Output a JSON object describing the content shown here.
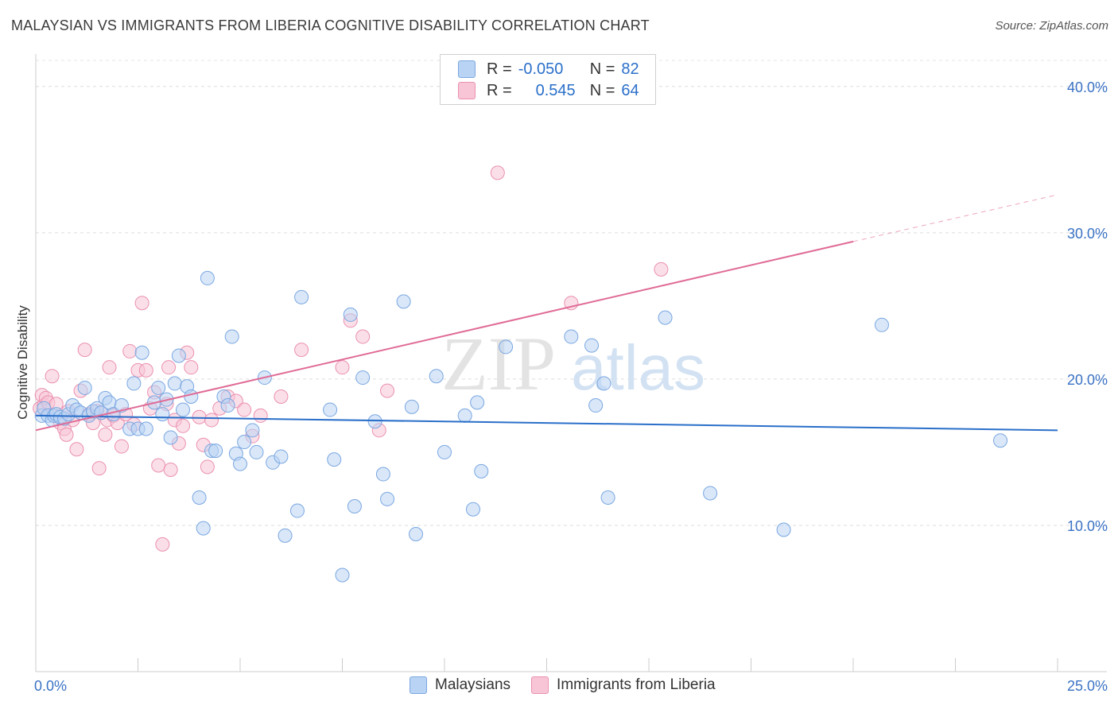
{
  "title": "MALAYSIAN VS IMMIGRANTS FROM LIBERIA COGNITIVE DISABILITY CORRELATION CHART",
  "source": "Source: ZipAtlas.com",
  "watermark": {
    "zip": "ZIP",
    "atlas": "atlas"
  },
  "legend": {
    "r_label": "R =",
    "n_label": "N =",
    "series1": {
      "r": "-0.050",
      "n": "82"
    },
    "series2": {
      "r": "0.545",
      "n": "64"
    }
  },
  "colors": {
    "blue_fill": "#b9d3f4",
    "blue_stroke": "#7aa7e0",
    "blue_line": "#2a6fc9",
    "pink_fill": "#f8c5d6",
    "pink_stroke": "#ea90b0",
    "pink_line": "#e06b96",
    "axis_text": "#3a72c4"
  },
  "chart_data": {
    "type": "scatter",
    "title": "MALAYSIAN VS IMMIGRANTS FROM LIBERIA COGNITIVE DISABILITY CORRELATION CHART",
    "ylabel": "Cognitive Disability",
    "xlabel": "",
    "xlim": [
      0,
      25
    ],
    "ylim": [
      0,
      42
    ],
    "x_tick_labels": [
      "0.0%",
      "25.0%"
    ],
    "y_ticks": [
      10,
      20,
      30,
      40
    ],
    "y_tick_labels": [
      "10.0%",
      "20.0%",
      "30.0%",
      "40.0%"
    ],
    "grid": true,
    "series": [
      {
        "name": "Malaysians",
        "color": "#b9d3f4",
        "trend": {
          "x": [
            0,
            25
          ],
          "y": [
            17.5,
            16.5
          ]
        },
        "points": [
          [
            0.15,
            17.5
          ],
          [
            0.2,
            18.0
          ],
          [
            0.3,
            17.5
          ],
          [
            0.4,
            17.2
          ],
          [
            0.45,
            17.5
          ],
          [
            0.5,
            17.6
          ],
          [
            0.6,
            17.4
          ],
          [
            0.7,
            17.3
          ],
          [
            0.8,
            17.6
          ],
          [
            0.9,
            18.2
          ],
          [
            1.0,
            17.9
          ],
          [
            1.1,
            17.7
          ],
          [
            1.2,
            19.4
          ],
          [
            1.3,
            17.5
          ],
          [
            1.4,
            17.8
          ],
          [
            1.5,
            18.0
          ],
          [
            1.6,
            17.7
          ],
          [
            1.7,
            18.7
          ],
          [
            1.8,
            18.4
          ],
          [
            1.9,
            17.6
          ],
          [
            2.1,
            18.2
          ],
          [
            2.3,
            16.6
          ],
          [
            2.4,
            19.7
          ],
          [
            2.5,
            16.6
          ],
          [
            2.6,
            21.8
          ],
          [
            2.7,
            16.6
          ],
          [
            2.9,
            18.4
          ],
          [
            3.0,
            19.4
          ],
          [
            3.1,
            17.6
          ],
          [
            3.2,
            18.6
          ],
          [
            3.3,
            16.0
          ],
          [
            3.4,
            19.7
          ],
          [
            3.5,
            21.6
          ],
          [
            3.6,
            17.9
          ],
          [
            3.7,
            19.5
          ],
          [
            3.8,
            18.8
          ],
          [
            4.0,
            11.9
          ],
          [
            4.1,
            9.8
          ],
          [
            4.2,
            26.9
          ],
          [
            4.3,
            15.1
          ],
          [
            4.4,
            15.1
          ],
          [
            4.6,
            18.8
          ],
          [
            4.7,
            18.2
          ],
          [
            4.8,
            22.9
          ],
          [
            4.9,
            14.9
          ],
          [
            5.0,
            14.2
          ],
          [
            5.1,
            15.7
          ],
          [
            5.3,
            16.5
          ],
          [
            5.4,
            15.0
          ],
          [
            5.6,
            20.1
          ],
          [
            5.8,
            14.3
          ],
          [
            6.0,
            14.7
          ],
          [
            6.1,
            9.3
          ],
          [
            6.4,
            11.0
          ],
          [
            6.5,
            25.6
          ],
          [
            7.2,
            17.9
          ],
          [
            7.3,
            14.5
          ],
          [
            7.5,
            6.6
          ],
          [
            7.7,
            24.4
          ],
          [
            7.8,
            11.3
          ],
          [
            8.0,
            20.1
          ],
          [
            8.3,
            17.1
          ],
          [
            8.5,
            13.5
          ],
          [
            8.6,
            11.8
          ],
          [
            9.0,
            25.3
          ],
          [
            9.2,
            18.1
          ],
          [
            9.3,
            9.4
          ],
          [
            9.8,
            20.2
          ],
          [
            10.0,
            15.0
          ],
          [
            10.5,
            17.5
          ],
          [
            10.9,
            13.7
          ],
          [
            10.8,
            18.4
          ],
          [
            10.7,
            11.1
          ],
          [
            11.5,
            22.2
          ],
          [
            13.1,
            22.9
          ],
          [
            13.6,
            22.3
          ],
          [
            13.7,
            18.2
          ],
          [
            13.9,
            19.7
          ],
          [
            14.0,
            11.9
          ],
          [
            15.4,
            24.2
          ],
          [
            16.5,
            12.2
          ],
          [
            18.3,
            9.7
          ],
          [
            20.7,
            23.7
          ],
          [
            23.6,
            15.8
          ]
        ]
      },
      {
        "name": "Immigrants from Liberia",
        "color": "#f8c5d6",
        "trend": {
          "x": [
            0,
            20
          ],
          "y": [
            16.5,
            29.4
          ]
        },
        "trend_dashed": {
          "x": [
            20,
            25
          ],
          "y": [
            29.4,
            32.6
          ]
        },
        "points": [
          [
            0.1,
            18.0
          ],
          [
            0.15,
            18.9
          ],
          [
            0.2,
            18.2
          ],
          [
            0.25,
            18.7
          ],
          [
            0.3,
            18.4
          ],
          [
            0.4,
            20.2
          ],
          [
            0.5,
            18.3
          ],
          [
            0.6,
            17.0
          ],
          [
            0.7,
            16.6
          ],
          [
            0.75,
            16.2
          ],
          [
            0.8,
            17.8
          ],
          [
            0.9,
            17.2
          ],
          [
            1.0,
            15.2
          ],
          [
            1.1,
            19.2
          ],
          [
            1.2,
            22.0
          ],
          [
            1.3,
            17.6
          ],
          [
            1.4,
            17.0
          ],
          [
            1.5,
            17.8
          ],
          [
            1.55,
            13.9
          ],
          [
            1.6,
            17.7
          ],
          [
            1.7,
            16.2
          ],
          [
            1.75,
            17.2
          ],
          [
            1.8,
            20.8
          ],
          [
            1.9,
            17.5
          ],
          [
            2.0,
            17.0
          ],
          [
            2.1,
            15.4
          ],
          [
            2.2,
            17.6
          ],
          [
            2.3,
            21.9
          ],
          [
            2.4,
            16.9
          ],
          [
            2.5,
            20.6
          ],
          [
            2.6,
            25.2
          ],
          [
            2.7,
            20.6
          ],
          [
            2.8,
            18.0
          ],
          [
            2.9,
            19.1
          ],
          [
            3.0,
            14.1
          ],
          [
            3.1,
            8.7
          ],
          [
            3.2,
            18.3
          ],
          [
            3.25,
            20.8
          ],
          [
            3.3,
            13.8
          ],
          [
            3.4,
            17.2
          ],
          [
            3.5,
            15.6
          ],
          [
            3.6,
            16.8
          ],
          [
            3.7,
            21.8
          ],
          [
            3.8,
            20.8
          ],
          [
            4.0,
            17.4
          ],
          [
            4.1,
            15.5
          ],
          [
            4.2,
            14.0
          ],
          [
            4.3,
            17.2
          ],
          [
            4.5,
            18.0
          ],
          [
            4.7,
            18.8
          ],
          [
            4.9,
            18.5
          ],
          [
            5.1,
            17.9
          ],
          [
            5.3,
            16.1
          ],
          [
            5.5,
            17.5
          ],
          [
            6.0,
            18.8
          ],
          [
            6.5,
            22.0
          ],
          [
            7.5,
            20.8
          ],
          [
            7.7,
            24.0
          ],
          [
            8.0,
            22.9
          ],
          [
            8.4,
            16.5
          ],
          [
            8.6,
            19.2
          ],
          [
            11.3,
            34.1
          ],
          [
            13.1,
            25.2
          ],
          [
            15.3,
            27.5
          ]
        ]
      }
    ]
  },
  "bottom_legend": {
    "item1": "Malaysians",
    "item2": "Immigrants from Liberia"
  }
}
